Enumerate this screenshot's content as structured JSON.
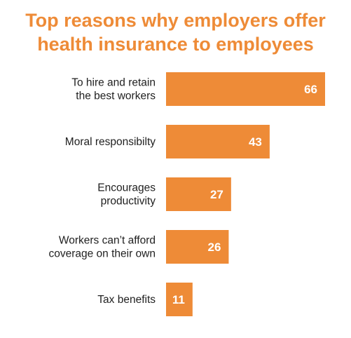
{
  "colors": {
    "accent": "#EE8B37",
    "title": "#EE8B37",
    "label_text": "#1F1F1F",
    "value_text": "#FFFFFF",
    "background": "#FFFFFF"
  },
  "chart_data": {
    "type": "bar",
    "orientation": "horizontal",
    "title_lines": [
      "Top reasons why employers offer",
      "health insurance to employees"
    ],
    "categories": [
      [
        "To hire and retain",
        "the best workers"
      ],
      [
        "Moral responsibilty"
      ],
      [
        "Encourages",
        "productivity"
      ],
      [
        "Workers can’t afford",
        "coverage on their own"
      ],
      [
        "Tax benefits"
      ]
    ],
    "values": [
      66,
      43,
      27,
      26,
      11
    ],
    "data_labels": [
      "66",
      "43",
      "27",
      "26",
      "11"
    ],
    "xlim": [
      0,
      66
    ],
    "grid": false,
    "legend": "none"
  }
}
